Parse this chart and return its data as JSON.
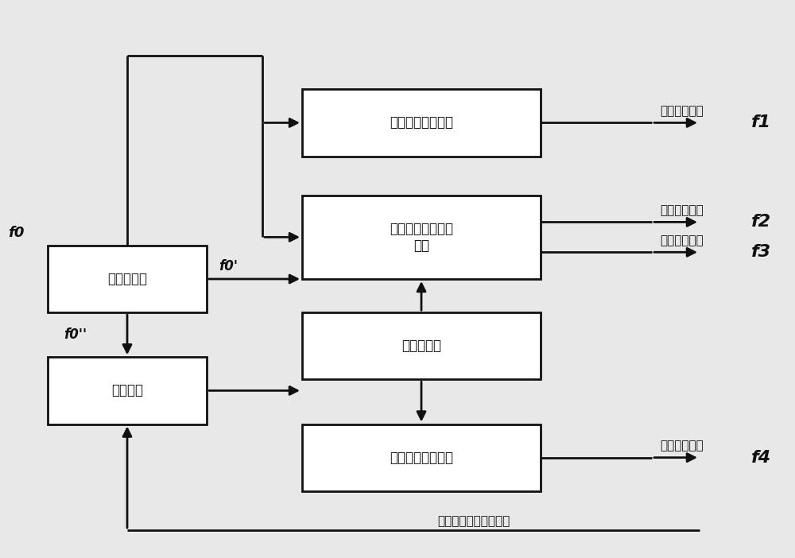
{
  "bg": "#e8e8e8",
  "box_fc": "#ffffff",
  "box_ec": "#111111",
  "lc": "#111111",
  "lw": 2.0,
  "boxes": {
    "clock": [
      0.06,
      0.44,
      0.2,
      0.12
    ],
    "control": [
      0.06,
      0.24,
      0.2,
      0.12
    ],
    "ref": [
      0.38,
      0.72,
      0.3,
      0.12
    ],
    "excite": [
      0.38,
      0.5,
      0.3,
      0.15
    ],
    "drive": [
      0.38,
      0.32,
      0.3,
      0.12
    ],
    "local": [
      0.38,
      0.12,
      0.3,
      0.12
    ]
  },
  "box_labels": {
    "clock": "时钟源单元",
    "control": "控制单元",
    "ref": "基准信号生成单元",
    "excite": "激励校正信号生成\n单元",
    "drive": "驱动源单元",
    "local": "本振信号生成单元"
  },
  "out_labels": {
    "ref": "相参基准信号",
    "excite_top": "发射激励信号",
    "excite_bot": "系统校正信号",
    "local": "接收本振信号"
  },
  "bottom_label": "控制、时序、告警信号",
  "f_labels": [
    "f1",
    "f2",
    "f3",
    "f4"
  ],
  "label_fs": 12,
  "signal_fs": 16
}
